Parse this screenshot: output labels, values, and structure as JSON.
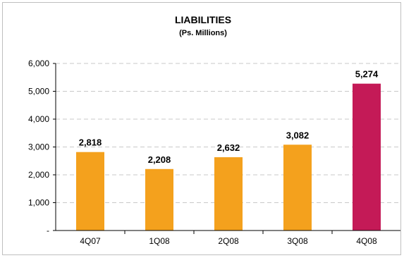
{
  "chart_data": {
    "type": "bar",
    "title": "LIABILITIES",
    "subtitle": "(Ps. Millions)",
    "categories": [
      "4Q07",
      "1Q08",
      "2Q08",
      "3Q08",
      "4Q08"
    ],
    "values": [
      2818,
      2208,
      2632,
      3082,
      5274
    ],
    "data_labels": [
      "2,818",
      "2,208",
      "2,632",
      "3,082",
      "5,274"
    ],
    "ylim": [
      0,
      6000
    ],
    "yticks": [
      0,
      1000,
      2000,
      3000,
      4000,
      5000,
      6000
    ],
    "ytick_labels": [
      "-",
      "1,000",
      "2,000",
      "3,000",
      "4,000",
      "5,000",
      "6,000"
    ],
    "grid": true,
    "legend": "none",
    "colors": {
      "default_bar": "#F4A11D",
      "highlight_bar": "#C41A57",
      "highlight_index": 4
    }
  }
}
